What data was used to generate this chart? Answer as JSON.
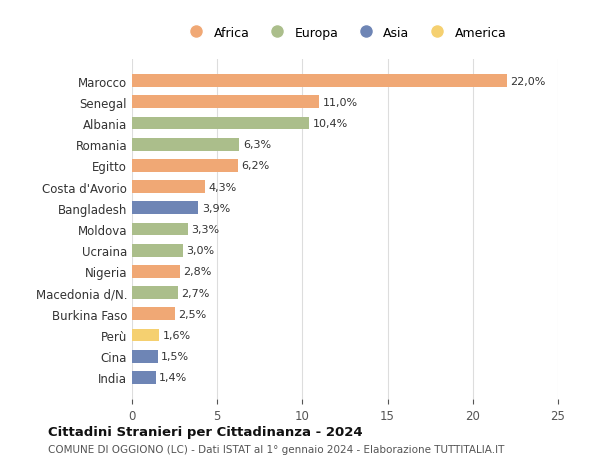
{
  "countries": [
    "Marocco",
    "Senegal",
    "Albania",
    "Romania",
    "Egitto",
    "Costa d'Avorio",
    "Bangladesh",
    "Moldova",
    "Ucraina",
    "Nigeria",
    "Macedonia d/N.",
    "Burkina Faso",
    "Perù",
    "Cina",
    "India"
  ],
  "values": [
    22.0,
    11.0,
    10.4,
    6.3,
    6.2,
    4.3,
    3.9,
    3.3,
    3.0,
    2.8,
    2.7,
    2.5,
    1.6,
    1.5,
    1.4
  ],
  "labels": [
    "22,0%",
    "11,0%",
    "10,4%",
    "6,3%",
    "6,2%",
    "4,3%",
    "3,9%",
    "3,3%",
    "3,0%",
    "2,8%",
    "2,7%",
    "2,5%",
    "1,6%",
    "1,5%",
    "1,4%"
  ],
  "continents": [
    "Africa",
    "Africa",
    "Europa",
    "Europa",
    "Africa",
    "Africa",
    "Asia",
    "Europa",
    "Europa",
    "Africa",
    "Europa",
    "Africa",
    "America",
    "Asia",
    "Asia"
  ],
  "colors": {
    "Africa": "#F0A875",
    "Europa": "#ABBE8B",
    "Asia": "#6E85B5",
    "America": "#F5D070"
  },
  "legend_order": [
    "Africa",
    "Europa",
    "Asia",
    "America"
  ],
  "xlim": [
    0,
    25
  ],
  "xticks": [
    0,
    5,
    10,
    15,
    20,
    25
  ],
  "title": "Cittadini Stranieri per Cittadinanza - 2024",
  "subtitle": "COMUNE DI OGGIONO (LC) - Dati ISTAT al 1° gennaio 2024 - Elaborazione TUTTITALIA.IT",
  "bg_color": "#ffffff",
  "grid_color": "#dddddd"
}
